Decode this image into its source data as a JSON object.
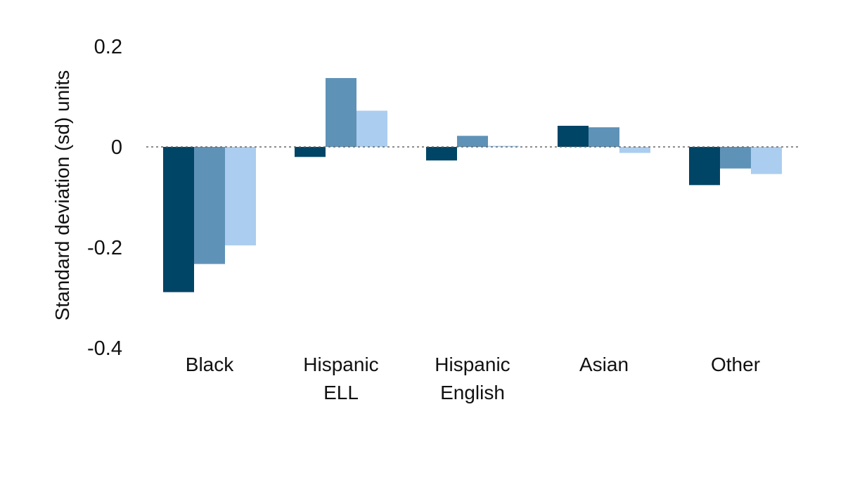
{
  "chart_data": {
    "type": "bar",
    "title": "",
    "xlabel": "",
    "ylabel": "Standard deviation (sd) units",
    "ylim": [
      -0.4,
      0.2
    ],
    "yticks": [
      {
        "value": 0.2,
        "label": "0.2"
      },
      {
        "value": 0,
        "label": "0"
      },
      {
        "value": -0.2,
        "label": "-0.2"
      },
      {
        "value": -0.4,
        "label": "-0.4"
      }
    ],
    "categories": [
      [
        "Black"
      ],
      [
        "Hispanic",
        "ELL"
      ],
      [
        "Hispanic",
        "English"
      ],
      [
        "Asian"
      ],
      [
        "Other"
      ]
    ],
    "series": [
      {
        "color": "#004466",
        "values": [
          -0.289,
          -0.02,
          -0.027,
          0.042,
          -0.076
        ]
      },
      {
        "color": "#5f92b7",
        "values": [
          -0.233,
          0.137,
          0.022,
          0.039,
          -0.043
        ]
      },
      {
        "color": "#abcdef",
        "values": [
          -0.196,
          0.072,
          0.002,
          -0.012,
          -0.054
        ]
      }
    ],
    "zero_line": {
      "style": "dotted",
      "color": "#666666"
    },
    "grid": false,
    "legend": "none"
  }
}
